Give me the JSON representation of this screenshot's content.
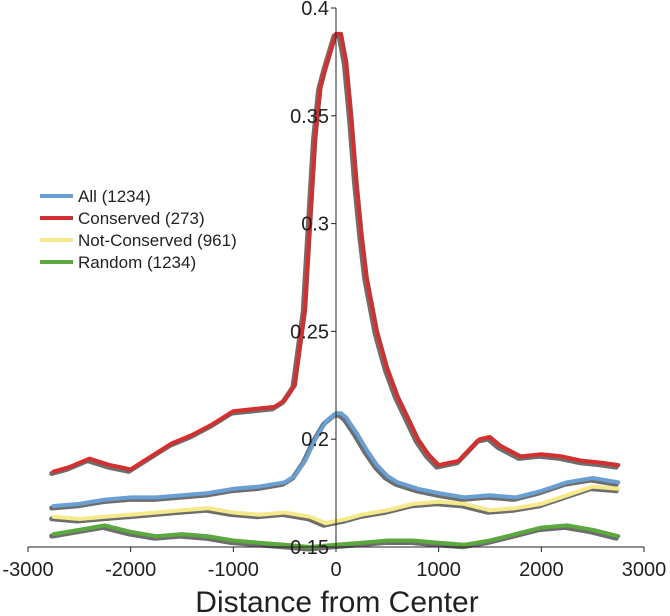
{
  "chart_data": {
    "type": "line",
    "title": "",
    "xlabel": "Distance from Center",
    "ylabel": "",
    "xlim": [
      -3000,
      3000
    ],
    "ylim": [
      0.15,
      0.4
    ],
    "x_ticks": [
      "-3000",
      "-2000",
      "-1000",
      "0",
      "1000",
      "2000",
      "3000"
    ],
    "y_ticks": [
      "0.15",
      "0.2",
      "0.25",
      "0.3",
      "0.35",
      "0.4"
    ],
    "grid": false,
    "legend_position": "left",
    "shadow_color": "#6d6d6d",
    "series": [
      {
        "name": "All (1234)",
        "color": "#6a9fd4",
        "x": [
          -2750,
          -2500,
          -2250,
          -2000,
          -1750,
          -1500,
          -1250,
          -1000,
          -750,
          -500,
          -400,
          -300,
          -200,
          -100,
          0,
          50,
          100,
          200,
          300,
          400,
          500,
          600,
          800,
          1000,
          1250,
          1500,
          1750,
          2000,
          2250,
          2500,
          2750
        ],
        "values": [
          0.169,
          0.17,
          0.172,
          0.173,
          0.173,
          0.174,
          0.175,
          0.177,
          0.178,
          0.18,
          0.183,
          0.19,
          0.2,
          0.208,
          0.212,
          0.212,
          0.21,
          0.203,
          0.195,
          0.188,
          0.183,
          0.18,
          0.177,
          0.175,
          0.173,
          0.174,
          0.173,
          0.176,
          0.18,
          0.182,
          0.18
        ]
      },
      {
        "name": "Conserved (273)",
        "color": "#d42e2e",
        "x": [
          -2750,
          -2600,
          -2400,
          -2200,
          -2000,
          -1800,
          -1600,
          -1400,
          -1200,
          -1000,
          -800,
          -600,
          -500,
          -400,
          -300,
          -250,
          -200,
          -150,
          -100,
          -50,
          0,
          50,
          100,
          150,
          200,
          250,
          300,
          400,
          500,
          600,
          700,
          800,
          900,
          1000,
          1100,
          1200,
          1300,
          1400,
          1500,
          1600,
          1800,
          2000,
          2200,
          2400,
          2600,
          2750
        ],
        "values": [
          0.185,
          0.187,
          0.191,
          0.188,
          0.186,
          0.192,
          0.198,
          0.202,
          0.207,
          0.213,
          0.214,
          0.215,
          0.218,
          0.225,
          0.26,
          0.3,
          0.34,
          0.363,
          0.372,
          0.38,
          0.388,
          0.388,
          0.375,
          0.35,
          0.32,
          0.295,
          0.275,
          0.25,
          0.233,
          0.22,
          0.21,
          0.2,
          0.193,
          0.188,
          0.189,
          0.19,
          0.195,
          0.2,
          0.201,
          0.197,
          0.192,
          0.193,
          0.192,
          0.19,
          0.189,
          0.188
        ]
      },
      {
        "name": "Not-Conserved (961)",
        "color": "#f5e98a",
        "x": [
          -2750,
          -2500,
          -2250,
          -2000,
          -1750,
          -1500,
          -1250,
          -1000,
          -750,
          -500,
          -250,
          -100,
          0,
          100,
          250,
          500,
          750,
          1000,
          1250,
          1500,
          1750,
          2000,
          2250,
          2500,
          2750
        ],
        "values": [
          0.164,
          0.163,
          0.164,
          0.165,
          0.166,
          0.167,
          0.168,
          0.166,
          0.165,
          0.166,
          0.164,
          0.161,
          0.162,
          0.163,
          0.165,
          0.167,
          0.17,
          0.171,
          0.17,
          0.167,
          0.168,
          0.17,
          0.174,
          0.178,
          0.177
        ]
      },
      {
        "name": "Random (1234)",
        "color": "#5aa83e",
        "x": [
          -2750,
          -2500,
          -2250,
          -2000,
          -1750,
          -1500,
          -1250,
          -1000,
          -750,
          -500,
          -250,
          0,
          250,
          500,
          750,
          1000,
          1250,
          1500,
          1750,
          2000,
          2250,
          2500,
          2750
        ],
        "values": [
          0.156,
          0.158,
          0.16,
          0.157,
          0.155,
          0.156,
          0.155,
          0.153,
          0.152,
          0.151,
          0.15,
          0.151,
          0.152,
          0.153,
          0.153,
          0.152,
          0.151,
          0.153,
          0.156,
          0.159,
          0.16,
          0.158,
          0.155
        ]
      }
    ]
  }
}
